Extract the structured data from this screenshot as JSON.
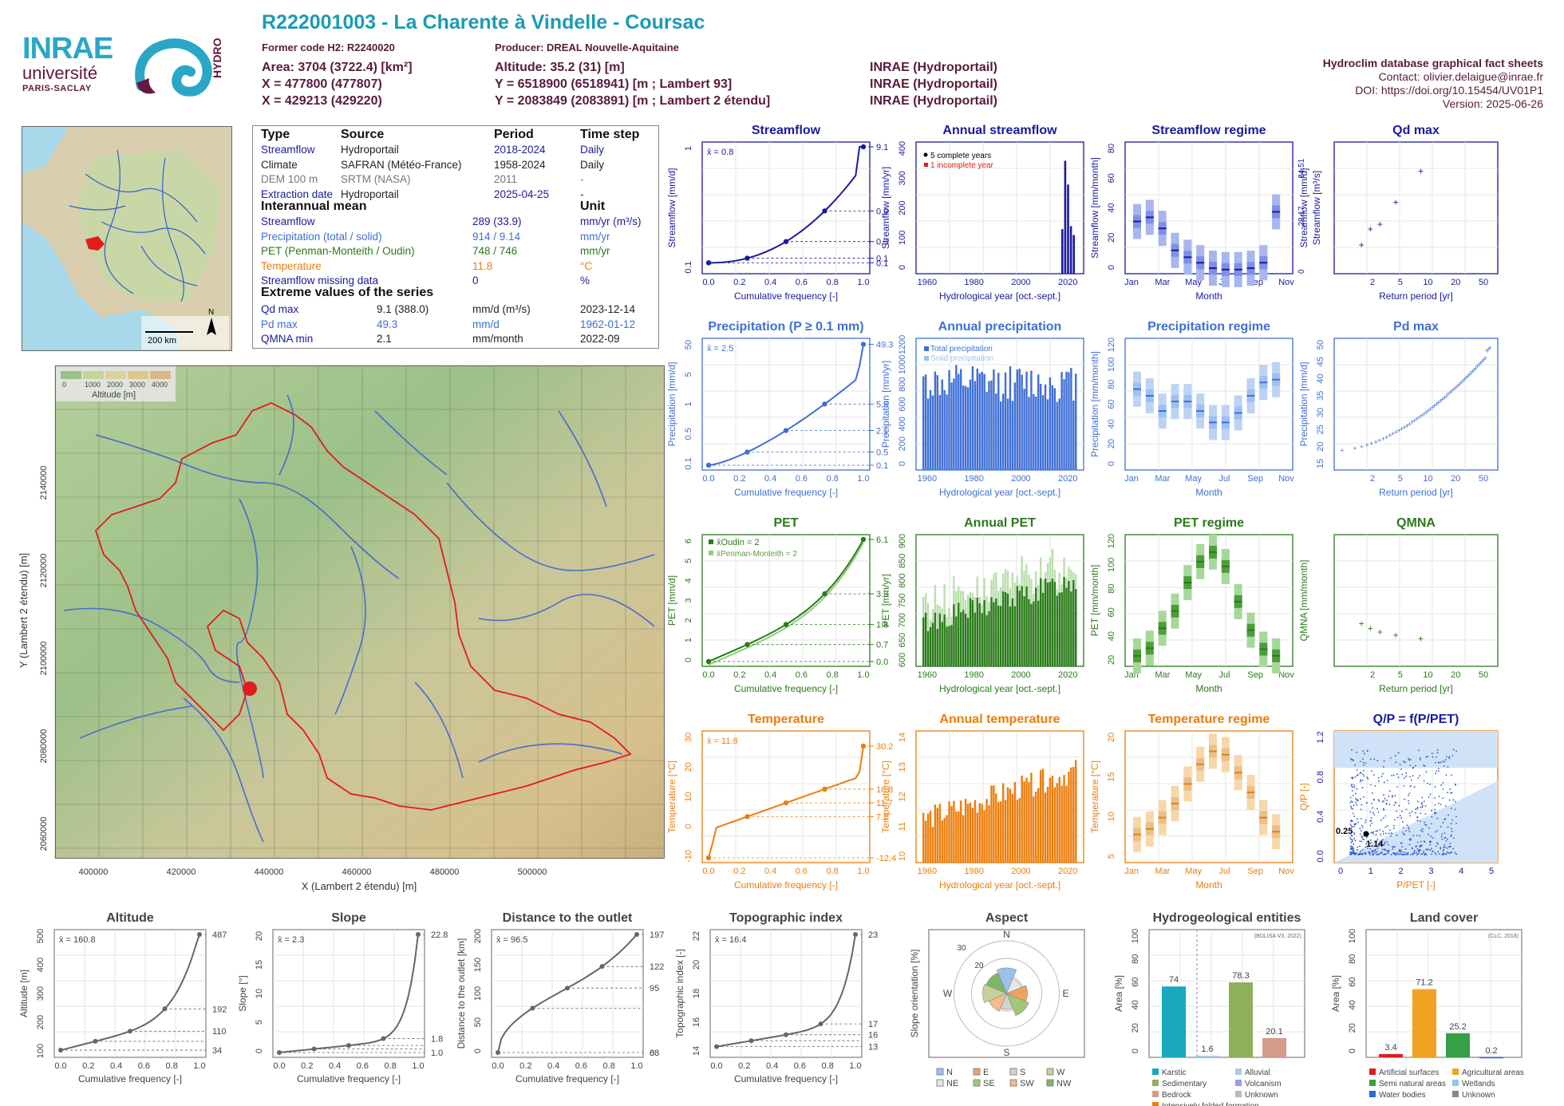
{
  "header": {
    "title": "R222001003 - La Charente à Vindelle - Coursac",
    "former_code": "Former code H2: R2240020",
    "producer": "Producer: DREAL Nouvelle-Aquitaine",
    "area": "Area: 3704 (3722.4) [km²]",
    "x_wgs": "X = 477800 (477807)",
    "x_l2": "X = 429213 (429220)",
    "altitude": "Altitude: 35.2 (31) [m]",
    "y_l93": "Y = 6518900 (6518941) [m ; Lambert 93]",
    "y_l2": "Y = 2083849 (2083891) [m ; Lambert 2 étendu]",
    "src1": "INRAE (Hydroportail)",
    "src2": "INRAE (Hydroportail)",
    "src3": "INRAE (Hydroportail)",
    "db_title": "Hydroclim database graphical fact sheets",
    "contact": "Contact: olivier.delaigue@inrae.fr",
    "doi": "DOI: https://doi.org/10.15454/UV01P1",
    "version": "Version: 2025-06-26"
  },
  "logos": {
    "inrae": "INRAE",
    "universite": "université",
    "paris_saclay": "PARIS-SACLAY",
    "hydro": "HYDRO"
  },
  "colors": {
    "streamflow": "#1a1aa0",
    "precip": "#3f6fd6",
    "pet": "#2a7a1a",
    "temp": "#ec7d0c",
    "red": "#e21b1b",
    "grey": "#666666",
    "title_teal": "#1b9bb5",
    "header_wine": "#5a1a3c"
  },
  "info": {
    "head": {
      "type": "Type",
      "source": "Source",
      "period": "Period",
      "step": "Time step"
    },
    "rows": [
      {
        "type": "Streamflow",
        "source": "Hydroportail",
        "period": "2018-2024",
        "step": "Daily",
        "color": "#1a1aa0"
      },
      {
        "type": "Climate",
        "source": "SAFRAN (Météo-France)",
        "period": "1958-2024",
        "step": "Daily",
        "color": "#222222"
      },
      {
        "type": "DEM 100 m",
        "source": "SRTM (NASA)",
        "period": "2011",
        "step": "-",
        "color": "#777777"
      },
      {
        "type": "Extraction date",
        "source": "Hydroportail",
        "period": "2025-04-25",
        "step": "-",
        "color": "#1a1aa0"
      }
    ],
    "mean_title": "Interannual mean",
    "unit_title": "Unit",
    "means": [
      {
        "label": "Streamflow",
        "value": "289 (33.9)",
        "unit": "mm/yr (m³/s)",
        "color": "#1a1aa0"
      },
      {
        "label": "Precipitation (total / solid)",
        "value": "914 / 9.14",
        "unit": "mm/yr",
        "color": "#3f6fd6"
      },
      {
        "label": "PET (Penman-Monteith / Oudin)",
        "value": "748 / 746",
        "unit": "mm/yr",
        "color": "#2a7a1a"
      },
      {
        "label": "Temperature",
        "value": "11.8",
        "unit": "°C",
        "color": "#ec7d0c"
      },
      {
        "label": "Streamflow missing data",
        "value": "0",
        "unit": "%",
        "color": "#1a1aa0"
      }
    ],
    "extreme_title": "Extreme values of the series",
    "extremes": [
      {
        "label": "Qd max",
        "value": "9.1 (388.0)",
        "unit": "mm/d (m³/s)",
        "date": "2023-12-14",
        "color": "#1a1aa0"
      },
      {
        "label": "Pd max",
        "value": "49.3",
        "unit": "mm/d",
        "date": "1962-01-12",
        "color": "#3f6fd6"
      },
      {
        "label": "QMNA min",
        "value": "2.1",
        "unit": "mm/month",
        "date": "2022-09",
        "color": "#1a1aa0"
      }
    ]
  },
  "minimap": {
    "scale": "200 km",
    "north": "N"
  },
  "map": {
    "legend_ticks": [
      "0",
      "1000",
      "2000",
      "3000",
      "4000"
    ],
    "legend_title": "Altitude [m]",
    "xlabel": "X (Lambert 2 étendu) [m]",
    "ylabel": "Y (Lambert 2 étendu) [m]",
    "xticks": [
      "400000",
      "420000",
      "440000",
      "460000",
      "480000",
      "500000"
    ],
    "yticks": [
      "2060000",
      "2080000",
      "2100000",
      "2120000",
      "2140000"
    ]
  },
  "chart_data": [
    {
      "id": "streamflow_fdc",
      "type": "line",
      "title": "Streamflow",
      "ylabel": "Streamflow [mm/d]",
      "xlabel": "Cumulative frequency [-]",
      "yscale": "log",
      "mean_label": "x̄ = 0.8",
      "x": [
        0,
        0.25,
        0.5,
        0.75,
        1
      ],
      "y": [
        0.06,
        0.1,
        0.3,
        0.9,
        9.1
      ],
      "right_ticks": [
        "9.1",
        "0.9",
        "0.3",
        "0.1",
        "0.1"
      ],
      "left_ticks": [
        "0.1",
        "1"
      ]
    },
    {
      "id": "annual_streamflow",
      "type": "bar",
      "title": "Annual streamflow",
      "ylabel": "Streamflow [mm/yr]",
      "xlabel": "Hydrological year [oct.-sept.]",
      "legend": [
        "5 complete years",
        "1 incomplete year"
      ],
      "ylim": [
        0,
        400
      ],
      "yticks": [
        "0",
        "100",
        "200",
        "300",
        "400"
      ],
      "xticks": [
        "1960",
        "1980",
        "2000",
        "2020"
      ],
      "years": [
        2018,
        2019,
        2020,
        2021,
        2022,
        2023
      ],
      "values": [
        150,
        380,
        300,
        160,
        130,
        0
      ]
    },
    {
      "id": "streamflow_regime",
      "type": "bar",
      "title": "Streamflow regime",
      "ylabel": "Streamflow [mm/month]",
      "xlabel": "Month",
      "months": [
        "Jan",
        "Mar",
        "May",
        "Jul",
        "Sep",
        "Nov"
      ],
      "median": [
        38,
        41,
        33,
        17,
        12,
        8,
        4,
        3,
        3,
        4,
        8,
        45
      ],
      "yticks": [
        "0",
        "20",
        "40",
        "60",
        "80"
      ],
      "right_ticks": [
        "0",
        "28.17",
        "84.51"
      ],
      "right_label": "Streamflow [m³/s]"
    },
    {
      "id": "qd_max",
      "type": "scatter",
      "title": "Qd max",
      "ylabel": "Streamflow [mm/d]",
      "xlabel": "Return period [yr]",
      "xticks": [
        "2",
        "5",
        "10",
        "20",
        "50"
      ],
      "points": [
        [
          1.3,
          2.2
        ],
        [
          1.6,
          3.6
        ],
        [
          2.0,
          4.0
        ],
        [
          2.9,
          5.9
        ],
        [
          5.2,
          8.6
        ]
      ]
    },
    {
      "id": "precip_fdc",
      "type": "line",
      "title": "Precipitation (P ≥ 0.1 mm)",
      "ylabel": "Precipitation [mm/d]",
      "xlabel": "Cumulative frequency [-]",
      "yscale": "log",
      "mean_label": "x̄ = 2.5",
      "right_ticks": [
        "49.3",
        "5.8",
        "2.1",
        "0.5",
        "0.1"
      ],
      "left_ticks": [
        "0.1",
        "0.5",
        "1",
        "5",
        "50"
      ]
    },
    {
      "id": "annual_precip",
      "type": "bar",
      "title": "Annual precipitation",
      "ylabel": "Precipitation [mm/yr]",
      "xlabel": "Hydrological year [oct.-sept.]",
      "legend": [
        "Total precipitation",
        "Solid precipitation"
      ],
      "yticks": [
        "0",
        "200",
        "400",
        "600",
        "800",
        "1000",
        "1200"
      ],
      "xticks": [
        "1960",
        "1980",
        "2000",
        "2020"
      ]
    },
    {
      "id": "precip_regime",
      "type": "bar",
      "title": "Precipitation regime",
      "ylabel": "Precipitation [mm/month]",
      "xlabel": "Month",
      "median": [
        85,
        78,
        62,
        72,
        72,
        62,
        50,
        50,
        60,
        78,
        92,
        95
      ],
      "yticks": [
        "0",
        "20",
        "40",
        "60",
        "80",
        "100",
        "120"
      ]
    },
    {
      "id": "pd_max",
      "type": "scatter",
      "title": "Pd max",
      "ylabel": "Precipitation [mm/d]",
      "xlabel": "Return period [yr]",
      "yticks": [
        "15",
        "20",
        "25",
        "30",
        "35",
        "40",
        "45",
        "50"
      ]
    },
    {
      "id": "pet_fdc",
      "type": "line",
      "title": "PET",
      "ylabel": "PET [mm/d]",
      "xlabel": "Cumulative frequency [-]",
      "legend": [
        "x̄Oudin = 2",
        "x̄Penman-Monteith = 2"
      ],
      "right_ticks": [
        "6.1",
        "3.3",
        "1.8",
        "0.7",
        "0.0"
      ],
      "left_ticks": [
        "0",
        "1",
        "2",
        "3",
        "4",
        "5",
        "6"
      ]
    },
    {
      "id": "annual_pet",
      "type": "bar",
      "title": "Annual PET",
      "ylabel": "PET [mm/yr]",
      "xlabel": "Hydrological year [oct.-sept.]",
      "yticks": [
        "600",
        "650",
        "700",
        "750",
        "800",
        "850",
        "900"
      ],
      "xticks": [
        "1960",
        "1980",
        "2000",
        "2020"
      ]
    },
    {
      "id": "pet_regime",
      "type": "bar",
      "title": "PET regime",
      "ylabel": "PET [mm/month]",
      "xlabel": "Month",
      "median": [
        11,
        19,
        40,
        58,
        88,
        110,
        120,
        105,
        68,
        38,
        18,
        11
      ],
      "yticks": [
        "20",
        "40",
        "60",
        "80",
        "100",
        "120"
      ]
    },
    {
      "id": "qmna",
      "type": "scatter",
      "title": "QMNA",
      "ylabel": "QMNA [mm/month]",
      "xlabel": "Return period [yr]",
      "points": [
        [
          1.3,
          3.4
        ],
        [
          1.6,
          3.0
        ],
        [
          2.0,
          2.7
        ],
        [
          2.9,
          2.4
        ],
        [
          5.2,
          2.1
        ]
      ]
    },
    {
      "id": "temp_fdc",
      "type": "line",
      "title": "Temperature",
      "ylabel": "Temperature [°C]",
      "xlabel": "Cumulative frequency [-]",
      "mean_label": "x̄ = 11.8",
      "right_ticks": [
        "30.2",
        "16.8",
        "11.7",
        "7.2",
        "-12.4"
      ],
      "left_ticks": [
        "-10",
        "0",
        "10",
        "20",
        "30"
      ]
    },
    {
      "id": "annual_temp",
      "type": "bar",
      "title": "Annual temperature",
      "ylabel": "Temperature [°C]",
      "xlabel": "Hydrological year [oct.-sept.]",
      "yticks": [
        "10",
        "11",
        "12",
        "13",
        "14"
      ],
      "xticks": [
        "1960",
        "1980",
        "2000",
        "2020"
      ]
    },
    {
      "id": "temp_regime",
      "type": "bar",
      "title": "Temperature regime",
      "ylabel": "Temperature [°C]",
      "xlabel": "Month",
      "median": [
        5,
        6,
        8,
        10.5,
        14,
        17.5,
        19.8,
        19.2,
        16,
        12.5,
        8,
        5.5
      ],
      "yticks": [
        "5",
        "10",
        "15",
        "20"
      ]
    },
    {
      "id": "qp_ppet",
      "type": "scatter",
      "title": "Q/P = f(P/PET)",
      "ylabel": "Q/P [-]",
      "xlabel": "P/PET [-]",
      "annot": [
        "0.25",
        "1.14"
      ],
      "xticks": [
        "0",
        "1",
        "2",
        "3",
        "4",
        "5"
      ],
      "yticks": [
        "0.0",
        "0.4",
        "0.8",
        "1.2"
      ]
    },
    {
      "id": "altitude_cdf",
      "type": "line",
      "title": "Altitude",
      "ylabel": "Altitude [m]",
      "xlabel": "Cumulative frequency [-]",
      "mean_label": "x̄ = 160.8",
      "right_ticks": [
        "487",
        "192",
        "110",
        "34"
      ],
      "left_ticks": [
        "100",
        "200",
        "300",
        "400",
        "500"
      ]
    },
    {
      "id": "slope_cdf",
      "type": "line",
      "title": "Slope",
      "ylabel": "Slope [°]",
      "xlabel": "Cumulative frequency [-]",
      "mean_label": "x̄ = 2.3",
      "right_ticks": [
        "22.8",
        "1.8",
        "1.0"
      ],
      "left_ticks": [
        "0",
        "5",
        "10",
        "15",
        "20"
      ]
    },
    {
      "id": "distance_cdf",
      "type": "line",
      "title": "Distance to the outlet",
      "ylabel": "Distance to the outlet [km]",
      "xlabel": "Cumulative frequency [-]",
      "mean_label": "x̄ = 96.5",
      "right_ticks": [
        "197",
        "122",
        "95",
        "68",
        "0"
      ],
      "left_ticks": [
        "0",
        "50",
        "100",
        "150",
        "200"
      ]
    },
    {
      "id": "topo_cdf",
      "type": "line",
      "title": "Topographic index",
      "ylabel": "Topographic index [-]",
      "xlabel": "Cumulative frequency [-]",
      "mean_label": "x̄ = 16.4",
      "right_ticks": [
        "23",
        "17",
        "16",
        "13"
      ],
      "left_ticks": [
        "14",
        "16",
        "18",
        "20",
        "22"
      ]
    },
    {
      "id": "aspect",
      "type": "pie",
      "title": "Aspect",
      "ylabel": "Slope orientation [%]",
      "rings": [
        "10",
        "20",
        "30"
      ],
      "directions": [
        "N",
        "NE",
        "E",
        "SE",
        "S",
        "SW",
        "W",
        "NW"
      ],
      "legend": [
        "N",
        "E",
        "S",
        "W",
        "NE",
        "SE",
        "SW",
        "NW"
      ]
    },
    {
      "id": "hydrogeol",
      "type": "bar",
      "title": "Hydrogeological entities",
      "ylabel": "Area [%]",
      "source": "(BDLISA V3, 2022)",
      "categories": [
        "Karstic",
        "Alluvial",
        "Sedimentary",
        "Volcanism",
        "Bedrock",
        "Unknown",
        "Intensively folded formation"
      ],
      "values": [
        74,
        1.6,
        78.3,
        0,
        20.1,
        0,
        0
      ],
      "labels": [
        "74",
        "1.6",
        "78.3",
        "20.1"
      ],
      "yticks": [
        "0",
        "20",
        "40",
        "60",
        "80",
        "100"
      ]
    },
    {
      "id": "land_cover",
      "type": "bar",
      "title": "Land cover",
      "ylabel": "Area [%]",
      "source": "(CLC, 2018)",
      "categories": [
        "Artificial surfaces",
        "Agricultural areas",
        "Semi natural areas",
        "Wetlands",
        "Water bodies",
        "Unknown"
      ],
      "values": [
        3.4,
        71.2,
        25.2,
        0,
        0.2,
        0
      ],
      "labels": [
        "3.4",
        "71.2",
        "25.2",
        "0.2"
      ],
      "yticks": [
        "0",
        "20",
        "40",
        "60",
        "80",
        "100"
      ]
    }
  ],
  "labels": {
    "cumfreq": "Cumulative frequency [-]",
    "hydroyear": "Hydrological year [oct.-sept.]",
    "month": "Month",
    "return_period": "Return period [yr]",
    "cf_ticks": [
      "0.0",
      "0.2",
      "0.4",
      "0.6",
      "0.8",
      "1.0"
    ],
    "month_ticks": [
      "Jan",
      "Mar",
      "May",
      "Jul",
      "Sep",
      "Nov"
    ],
    "rp_ticks": [
      "2",
      "5",
      "10",
      "20",
      "50"
    ]
  }
}
